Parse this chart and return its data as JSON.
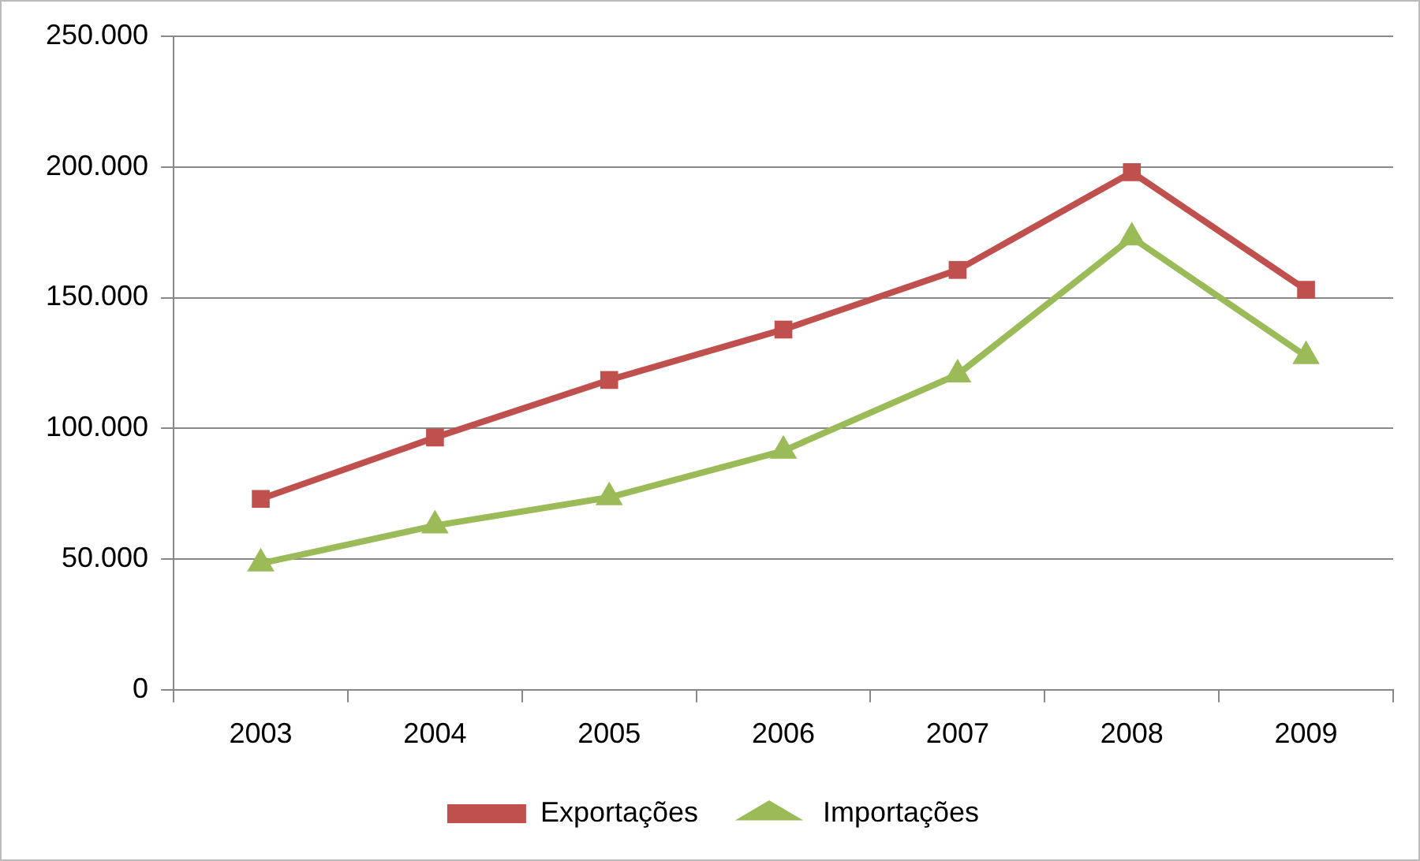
{
  "chart_data": {
    "type": "line",
    "categories": [
      "2003",
      "2004",
      "2005",
      "2006",
      "2007",
      "2008",
      "2009"
    ],
    "series": [
      {
        "name": "Exportações",
        "color": "#c0504d",
        "marker": "square",
        "values": [
          73000,
          96500,
          118500,
          137800,
          160600,
          198000,
          153000
        ]
      },
      {
        "name": "Importações",
        "color": "#9bbb59",
        "marker": "triangle",
        "values": [
          48300,
          62800,
          73600,
          91400,
          120600,
          173000,
          127600
        ]
      }
    ],
    "ylim": [
      0,
      250000
    ],
    "yticks": [
      {
        "value": 0,
        "label": "0"
      },
      {
        "value": 50000,
        "label": "50.000"
      },
      {
        "value": 100000,
        "label": "100.000"
      },
      {
        "value": 150000,
        "label": "150.000"
      },
      {
        "value": 200000,
        "label": "200.000"
      },
      {
        "value": 250000,
        "label": "250.000"
      }
    ],
    "grid": "y",
    "legend": "bottom"
  }
}
